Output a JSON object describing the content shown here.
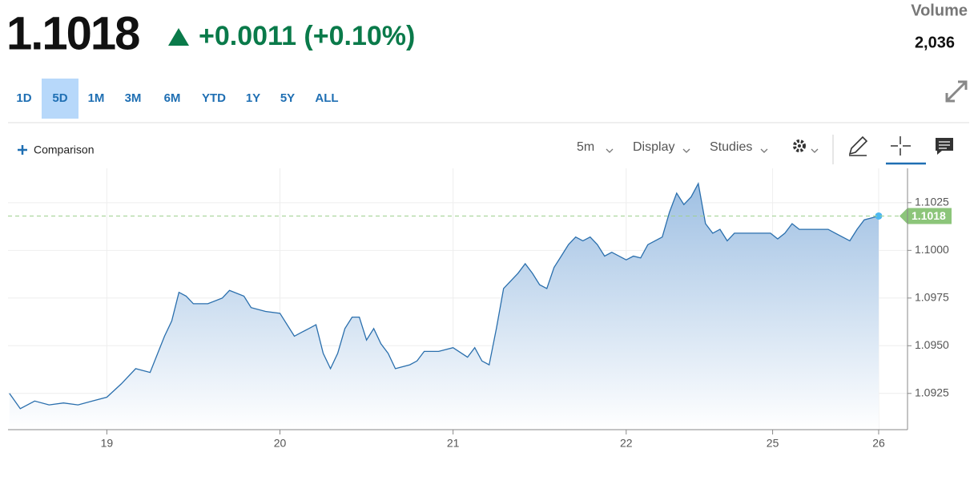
{
  "header": {
    "price": "1.1018",
    "change": "+0.0011 (+0.10%)",
    "volume_label": "Volume",
    "volume": "2,036"
  },
  "ranges": [
    "1D",
    "5D",
    "1M",
    "3M",
    "6M",
    "YTD",
    "1Y",
    "5Y",
    "ALL"
  ],
  "selected_range": "5D",
  "toolbar": {
    "comparison": "Comparison",
    "interval": "5m",
    "display": "Display",
    "studies": "Studies"
  },
  "chart_data": {
    "type": "area",
    "last_value": 1.1018,
    "series": [
      {
        "color": "#2a6fad",
        "x": [
          -13.5,
          -12,
          -10,
          -8,
          -6,
          -4,
          -2,
          0,
          2,
          4,
          6,
          8,
          9,
          10,
          11,
          12,
          14,
          16,
          17,
          19,
          20,
          22,
          24,
          26,
          27,
          28,
          29,
          30,
          31,
          32,
          33,
          34,
          35,
          36,
          37,
          38,
          39,
          40,
          42,
          43,
          44,
          46,
          48,
          50,
          51,
          52,
          53,
          54,
          55,
          56,
          57,
          58,
          59,
          60,
          61,
          62,
          63,
          64,
          65,
          66,
          67,
          68,
          69,
          70,
          72,
          73,
          74,
          75,
          76,
          77,
          78,
          79,
          80,
          81,
          82,
          83,
          84,
          85,
          86,
          87,
          88,
          90,
          92,
          93,
          94,
          95,
          96,
          98,
          100,
          101,
          102,
          103,
          104,
          105,
          106,
          107
        ],
        "values": [
          1.0925,
          1.0917,
          1.0921,
          1.0919,
          1.092,
          1.0919,
          1.0921,
          1.0923,
          1.093,
          1.0938,
          1.0936,
          1.0955,
          1.0963,
          1.0978,
          1.0976,
          1.0972,
          1.0972,
          1.0975,
          1.0979,
          1.0976,
          1.097,
          1.0968,
          1.0967,
          1.0955,
          1.0957,
          1.0959,
          1.0961,
          1.0946,
          1.0938,
          1.0946,
          1.0959,
          1.0965,
          1.0965,
          1.0953,
          1.0959,
          1.0951,
          1.0946,
          1.0938,
          1.094,
          1.0942,
          1.0947,
          1.0947,
          1.0949,
          1.0944,
          1.0949,
          1.0942,
          1.094,
          1.0959,
          1.098,
          1.0984,
          1.0988,
          1.0993,
          1.0988,
          1.0982,
          1.098,
          1.0991,
          1.0997,
          1.1003,
          1.1007,
          1.1005,
          1.1007,
          1.1003,
          1.0997,
          1.0999,
          1.0995,
          1.0997,
          1.0996,
          1.1003,
          1.1005,
          1.1007,
          1.102,
          1.103,
          1.1024,
          1.1028,
          1.1035,
          1.1014,
          1.1009,
          1.1011,
          1.1005,
          1.1009,
          1.1009,
          1.1009,
          1.1009,
          1.1006,
          1.1009,
          1.1014,
          1.1011,
          1.1011,
          1.1011,
          1.1009,
          1.1007,
          1.1005,
          1.1011,
          1.1016,
          1.1017,
          1.1018
        ]
      }
    ],
    "xlim": [
      -13.7,
      111
    ],
    "xticks": [
      {
        "value": 0,
        "label": "19"
      },
      {
        "value": 24,
        "label": "20"
      },
      {
        "value": 48,
        "label": "21"
      },
      {
        "value": 72,
        "label": "22"
      },
      {
        "value": 92.3,
        "label": "25"
      },
      {
        "value": 107,
        "label": "26"
      }
    ],
    "ylim": [
      1.0906,
      1.1043
    ],
    "yticks": [
      {
        "value": 1.0925,
        "label": "1.0925"
      },
      {
        "value": 1.095,
        "label": "1.0950"
      },
      {
        "value": 1.0975,
        "label": "1.0975"
      },
      {
        "value": 1.1,
        "label": "1.1000"
      },
      {
        "value": 1.1025,
        "label": "1.1025"
      }
    ],
    "grid": true
  }
}
